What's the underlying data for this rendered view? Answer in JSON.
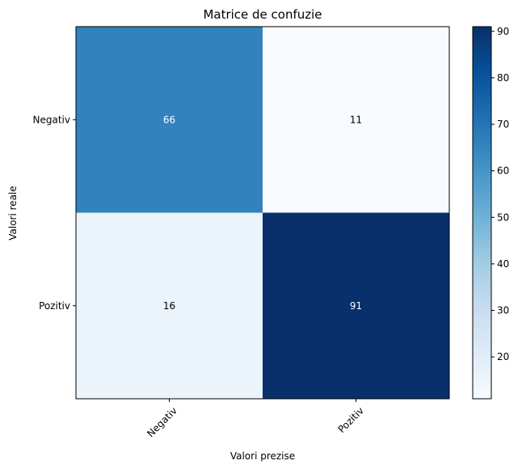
{
  "chart_data": {
    "type": "heatmap",
    "title": "Matrice de confuzie",
    "xlabel": "Valori prezise",
    "ylabel": "Valori reale",
    "x_categories": [
      "Negativ",
      "Pozitiv"
    ],
    "y_categories": [
      "Negativ",
      "Pozitiv"
    ],
    "values": [
      [
        66,
        11
      ],
      [
        16,
        91
      ]
    ],
    "colormap": "Blues",
    "colorbar": {
      "range": [
        11,
        91
      ],
      "ticks": [
        20,
        30,
        40,
        50,
        60,
        70,
        80,
        90
      ]
    },
    "grid": false,
    "x_tick_rotation_deg": 45
  }
}
